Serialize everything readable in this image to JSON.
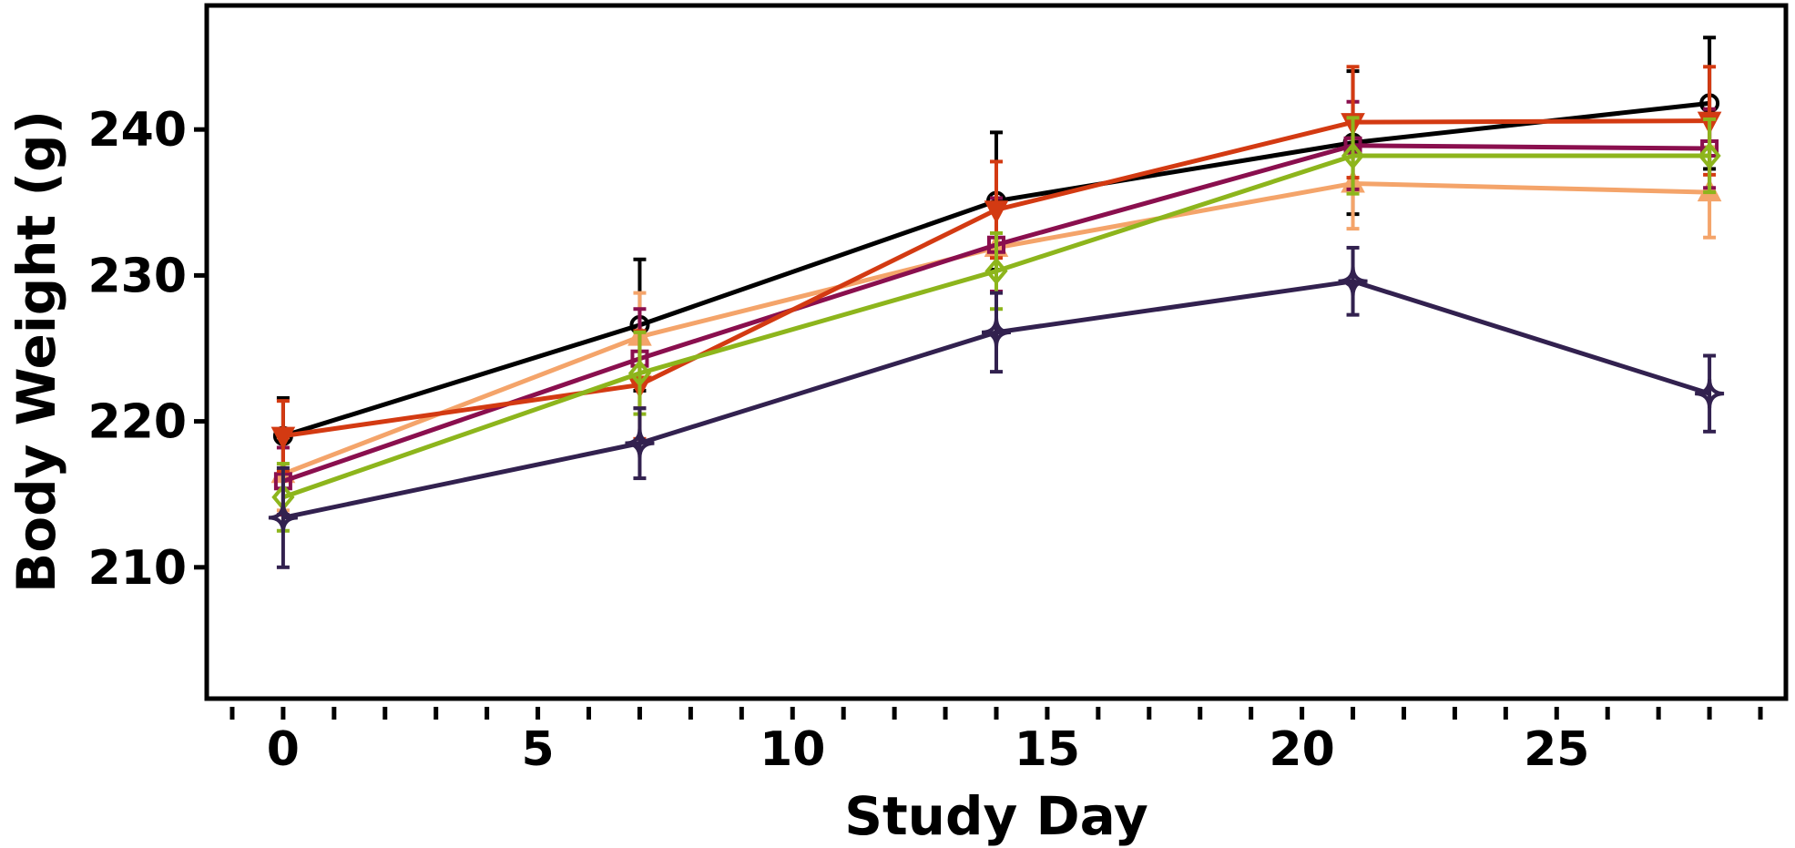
{
  "chart_data": {
    "type": "line",
    "title": "",
    "xlabel": "Study Day",
    "ylabel": "Body Weight (g)",
    "xlim": [
      -1.5,
      29.5
    ],
    "ylim": [
      201.0,
      248.5
    ],
    "xticks": [
      0,
      5,
      10,
      15,
      20,
      25
    ],
    "xtick_labels": [
      "0",
      "5",
      "10",
      "15",
      "20",
      "25"
    ],
    "x_minor_ticks": [
      -1,
      0,
      1,
      2,
      3,
      4,
      5,
      6,
      7,
      8,
      9,
      10,
      11,
      12,
      13,
      14,
      15,
      16,
      17,
      18,
      19,
      20,
      21,
      22,
      23,
      24,
      25,
      26,
      27,
      28,
      29
    ],
    "yticks": [
      210,
      220,
      230,
      240
    ],
    "ytick_labels": [
      "210",
      "220",
      "230",
      "240"
    ],
    "grid": false,
    "legend": "none",
    "x": [
      0,
      7,
      14,
      21,
      28
    ],
    "series": [
      {
        "color": "#000000",
        "marker": "circle",
        "values": [
          219.0,
          226.6,
          235.1,
          239.1,
          241.8
        ],
        "errors": [
          2.6,
          4.5,
          4.7,
          4.9,
          4.5
        ]
      },
      {
        "color": "#f4a46a",
        "marker": "triangle-up",
        "values": [
          216.4,
          225.8,
          231.9,
          236.3,
          235.7
        ],
        "errors": [
          2.5,
          3.0,
          3.0,
          3.1,
          3.1
        ]
      },
      {
        "color": "#8a0f4e",
        "marker": "square",
        "values": [
          215.9,
          224.3,
          232.1,
          238.9,
          238.7
        ],
        "errors": [
          2.3,
          3.4,
          3.2,
          3.0,
          2.7
        ]
      },
      {
        "color": "#d33a12",
        "marker": "triangle-down",
        "values": [
          219.0,
          222.5,
          234.5,
          240.5,
          240.6
        ],
        "errors": [
          2.4,
          3.7,
          3.3,
          3.8,
          3.7
        ]
      },
      {
        "color": "#8db51c",
        "marker": "diamond",
        "values": [
          214.8,
          223.3,
          230.3,
          238.2,
          238.2
        ],
        "errors": [
          2.3,
          2.8,
          2.6,
          2.6,
          2.5
        ]
      },
      {
        "color": "#32214f",
        "marker": "star4",
        "values": [
          213.4,
          218.5,
          226.1,
          229.6,
          221.9
        ],
        "errors": [
          3.4,
          2.4,
          2.7,
          2.3,
          2.6
        ]
      }
    ]
  }
}
